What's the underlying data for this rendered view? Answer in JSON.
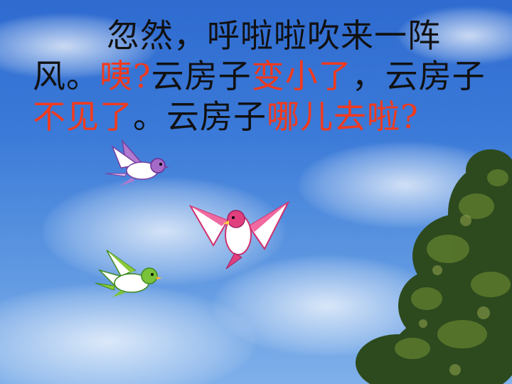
{
  "passage": {
    "s1": "忽然，呼啦啦吹来一阵风。",
    "s2": "咦?",
    "s3": "云房子",
    "s4": "变小了",
    "s5": "，云房子",
    "s6": "不见了",
    "s7": "。云房子",
    "s8": "哪儿去啦?"
  },
  "colors": {
    "highlight": "#f23a1d",
    "text": "#111111",
    "sky": "#3b7ad8"
  },
  "illustration": {
    "birds": [
      "purple-bird",
      "pink-bird",
      "green-bird"
    ],
    "tree": "tree-foliage"
  }
}
